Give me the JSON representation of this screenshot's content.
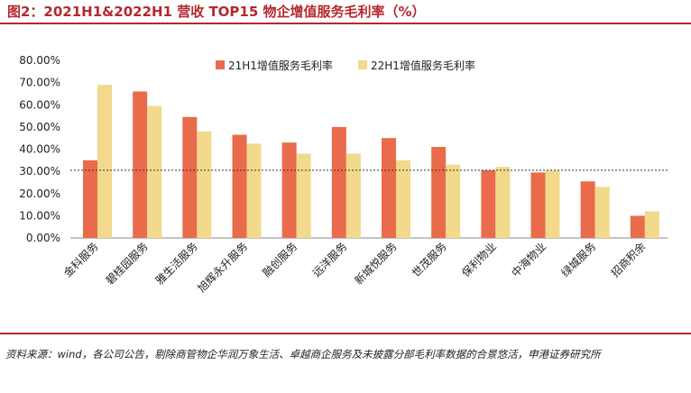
{
  "title": "图2：2021H1&2022H1 营收 TOP15 物企增值服务毛利率（%）",
  "source": "资料来源：wind，各公司公告，剔除商管物企华润万象生活、卓越商企服务及未披露分部毛利率数据的合景悠活，申港证券研究所",
  "colors": {
    "s21": "#e96b4b",
    "s22": "#f2d98b",
    "accent": "#b5282e"
  },
  "chart_data": {
    "type": "bar",
    "categories": [
      "金科服务",
      "碧桂园服务",
      "雅生活服务",
      "旭辉永升服务",
      "融创服务",
      "远洋服务",
      "新城悦服务",
      "世茂服务",
      "保利物业",
      "中海物业",
      "绿城服务",
      "招商积余"
    ],
    "series": [
      {
        "name": "21H1增值服务毛利率",
        "values": [
          35,
          66,
          54.5,
          46.5,
          43,
          50,
          45,
          41,
          30.5,
          29.5,
          25.5,
          10
        ]
      },
      {
        "name": "22H1增值服务毛利率",
        "values": [
          69,
          59.5,
          48,
          42.5,
          38,
          38,
          35,
          33,
          32,
          30.5,
          23,
          12
        ]
      }
    ],
    "ylim": [
      0,
      80
    ],
    "yticks": [
      "0.00%",
      "10.00%",
      "20.00%",
      "30.00%",
      "40.00%",
      "50.00%",
      "60.00%",
      "70.00%",
      "80.00%"
    ],
    "reference_line": 30.5,
    "legend_position": "top"
  }
}
